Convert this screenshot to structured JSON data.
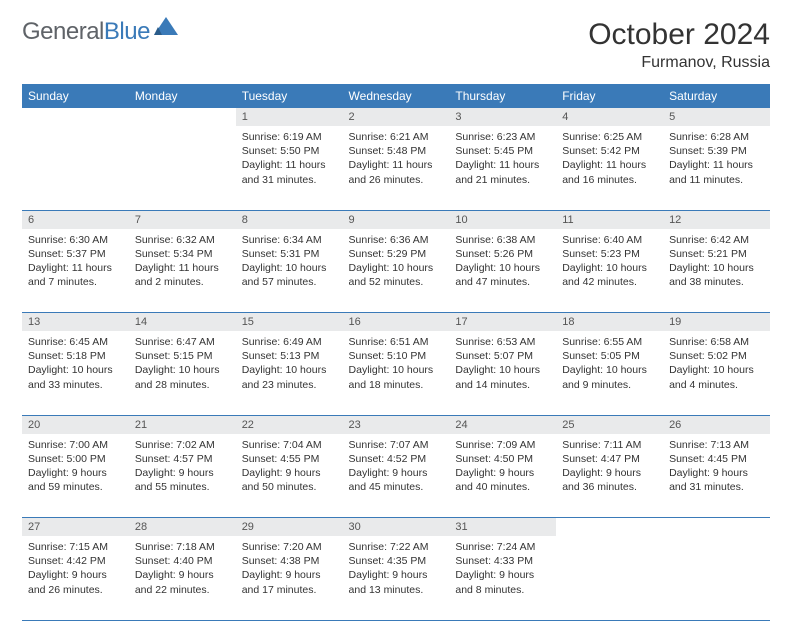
{
  "logo": {
    "text1": "General",
    "text2": "Blue"
  },
  "title": "October 2024",
  "location": "Furmanov, Russia",
  "header_bg": "#3a7ab8",
  "daynum_bg": "#e9eaeb",
  "weekdays": [
    "Sunday",
    "Monday",
    "Tuesday",
    "Wednesday",
    "Thursday",
    "Friday",
    "Saturday"
  ],
  "weeks": [
    {
      "nums": [
        "",
        "",
        "1",
        "2",
        "3",
        "4",
        "5"
      ],
      "cells": [
        null,
        null,
        {
          "sunrise": "6:19 AM",
          "sunset": "5:50 PM",
          "daylight": "11 hours and 31 minutes."
        },
        {
          "sunrise": "6:21 AM",
          "sunset": "5:48 PM",
          "daylight": "11 hours and 26 minutes."
        },
        {
          "sunrise": "6:23 AM",
          "sunset": "5:45 PM",
          "daylight": "11 hours and 21 minutes."
        },
        {
          "sunrise": "6:25 AM",
          "sunset": "5:42 PM",
          "daylight": "11 hours and 16 minutes."
        },
        {
          "sunrise": "6:28 AM",
          "sunset": "5:39 PM",
          "daylight": "11 hours and 11 minutes."
        }
      ]
    },
    {
      "nums": [
        "6",
        "7",
        "8",
        "9",
        "10",
        "11",
        "12"
      ],
      "cells": [
        {
          "sunrise": "6:30 AM",
          "sunset": "5:37 PM",
          "daylight": "11 hours and 7 minutes."
        },
        {
          "sunrise": "6:32 AM",
          "sunset": "5:34 PM",
          "daylight": "11 hours and 2 minutes."
        },
        {
          "sunrise": "6:34 AM",
          "sunset": "5:31 PM",
          "daylight": "10 hours and 57 minutes."
        },
        {
          "sunrise": "6:36 AM",
          "sunset": "5:29 PM",
          "daylight": "10 hours and 52 minutes."
        },
        {
          "sunrise": "6:38 AM",
          "sunset": "5:26 PM",
          "daylight": "10 hours and 47 minutes."
        },
        {
          "sunrise": "6:40 AM",
          "sunset": "5:23 PM",
          "daylight": "10 hours and 42 minutes."
        },
        {
          "sunrise": "6:42 AM",
          "sunset": "5:21 PM",
          "daylight": "10 hours and 38 minutes."
        }
      ]
    },
    {
      "nums": [
        "13",
        "14",
        "15",
        "16",
        "17",
        "18",
        "19"
      ],
      "cells": [
        {
          "sunrise": "6:45 AM",
          "sunset": "5:18 PM",
          "daylight": "10 hours and 33 minutes."
        },
        {
          "sunrise": "6:47 AM",
          "sunset": "5:15 PM",
          "daylight": "10 hours and 28 minutes."
        },
        {
          "sunrise": "6:49 AM",
          "sunset": "5:13 PM",
          "daylight": "10 hours and 23 minutes."
        },
        {
          "sunrise": "6:51 AM",
          "sunset": "5:10 PM",
          "daylight": "10 hours and 18 minutes."
        },
        {
          "sunrise": "6:53 AM",
          "sunset": "5:07 PM",
          "daylight": "10 hours and 14 minutes."
        },
        {
          "sunrise": "6:55 AM",
          "sunset": "5:05 PM",
          "daylight": "10 hours and 9 minutes."
        },
        {
          "sunrise": "6:58 AM",
          "sunset": "5:02 PM",
          "daylight": "10 hours and 4 minutes."
        }
      ]
    },
    {
      "nums": [
        "20",
        "21",
        "22",
        "23",
        "24",
        "25",
        "26"
      ],
      "cells": [
        {
          "sunrise": "7:00 AM",
          "sunset": "5:00 PM",
          "daylight": "9 hours and 59 minutes."
        },
        {
          "sunrise": "7:02 AM",
          "sunset": "4:57 PM",
          "daylight": "9 hours and 55 minutes."
        },
        {
          "sunrise": "7:04 AM",
          "sunset": "4:55 PM",
          "daylight": "9 hours and 50 minutes."
        },
        {
          "sunrise": "7:07 AM",
          "sunset": "4:52 PM",
          "daylight": "9 hours and 45 minutes."
        },
        {
          "sunrise": "7:09 AM",
          "sunset": "4:50 PM",
          "daylight": "9 hours and 40 minutes."
        },
        {
          "sunrise": "7:11 AM",
          "sunset": "4:47 PM",
          "daylight": "9 hours and 36 minutes."
        },
        {
          "sunrise": "7:13 AM",
          "sunset": "4:45 PM",
          "daylight": "9 hours and 31 minutes."
        }
      ]
    },
    {
      "nums": [
        "27",
        "28",
        "29",
        "30",
        "31",
        "",
        ""
      ],
      "cells": [
        {
          "sunrise": "7:15 AM",
          "sunset": "4:42 PM",
          "daylight": "9 hours and 26 minutes."
        },
        {
          "sunrise": "7:18 AM",
          "sunset": "4:40 PM",
          "daylight": "9 hours and 22 minutes."
        },
        {
          "sunrise": "7:20 AM",
          "sunset": "4:38 PM",
          "daylight": "9 hours and 17 minutes."
        },
        {
          "sunrise": "7:22 AM",
          "sunset": "4:35 PM",
          "daylight": "9 hours and 13 minutes."
        },
        {
          "sunrise": "7:24 AM",
          "sunset": "4:33 PM",
          "daylight": "9 hours and 8 minutes."
        },
        null,
        null
      ]
    }
  ]
}
